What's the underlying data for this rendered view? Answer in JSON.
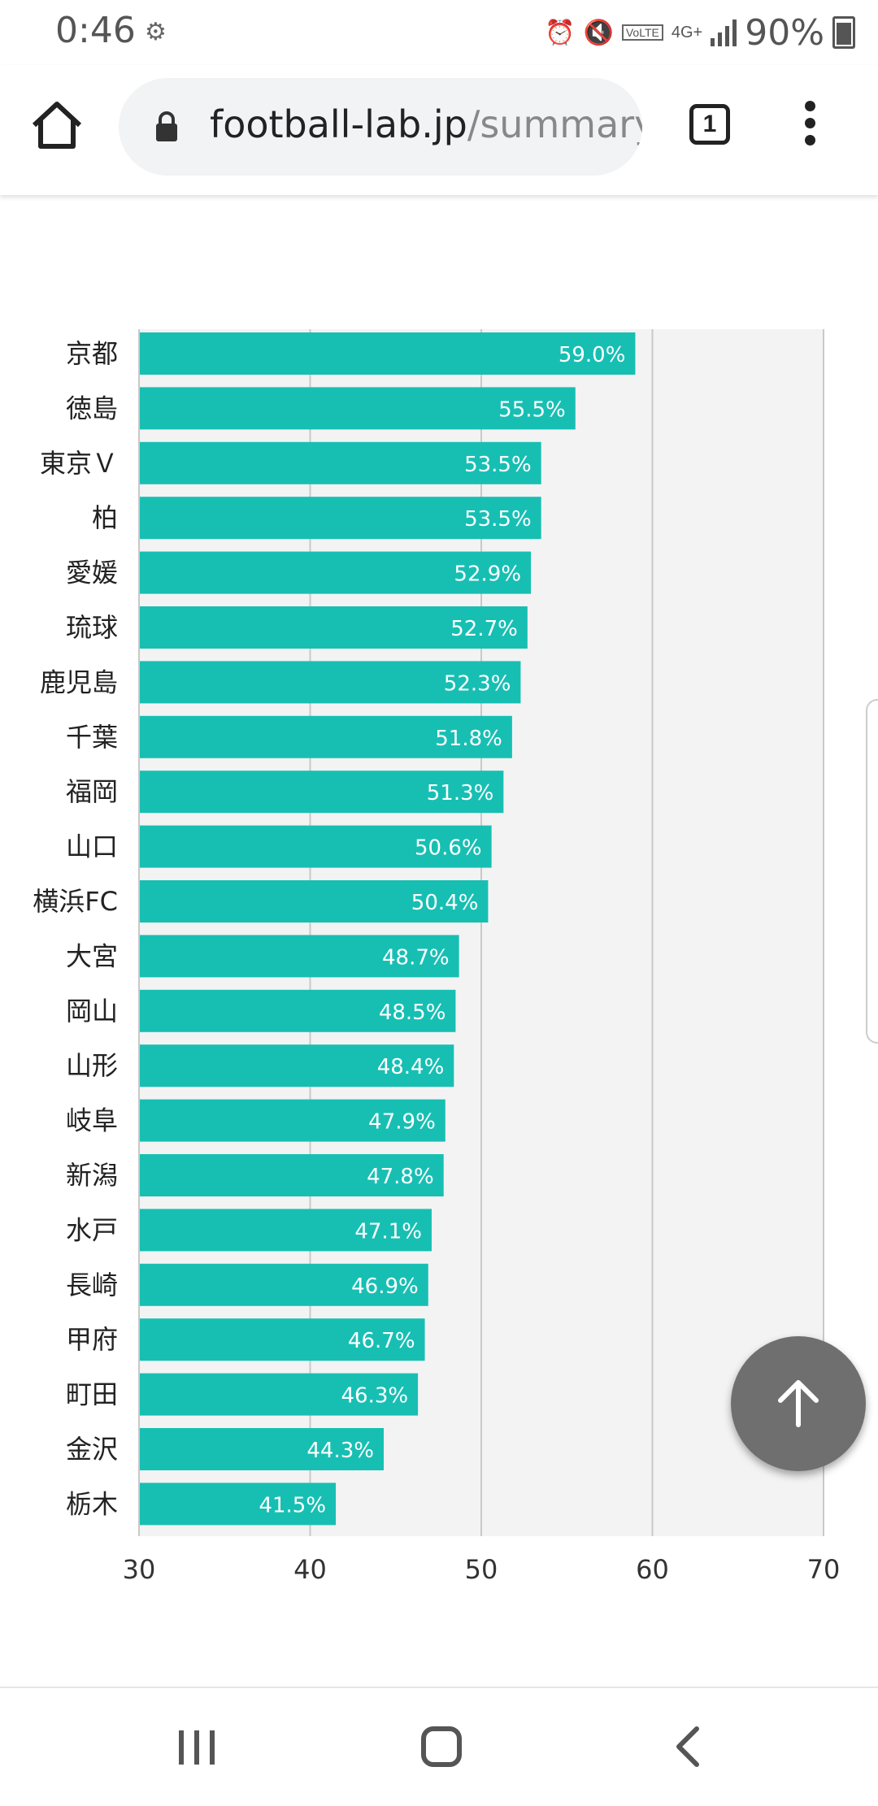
{
  "status_bar": {
    "time": "0:46",
    "volte": "VoLTE",
    "network": "4G+",
    "battery": "90%"
  },
  "browser": {
    "url_host": "football-lab.jp",
    "url_path": "/summary",
    "tab_count": "1"
  },
  "chart_data": {
    "type": "bar",
    "orientation": "horizontal",
    "categories": [
      "京都",
      "徳島",
      "東京Ｖ",
      "柏",
      "愛媛",
      "琉球",
      "鹿児島",
      "千葉",
      "福岡",
      "山口",
      "横浜FC",
      "大宮",
      "岡山",
      "山形",
      "岐阜",
      "新潟",
      "水戸",
      "長崎",
      "甲府",
      "町田",
      "金沢",
      "栃木"
    ],
    "values": [
      59.0,
      55.5,
      53.5,
      53.5,
      52.9,
      52.7,
      52.3,
      51.8,
      51.3,
      50.6,
      50.4,
      48.7,
      48.5,
      48.4,
      47.9,
      47.8,
      47.1,
      46.9,
      46.7,
      46.3,
      44.3,
      41.5
    ],
    "value_labels": [
      "59.0%",
      "55.5%",
      "53.5%",
      "53.5%",
      "52.9%",
      "52.7%",
      "52.3%",
      "51.8%",
      "51.3%",
      "50.6%",
      "50.4%",
      "48.7%",
      "48.5%",
      "48.4%",
      "47.9%",
      "47.8%",
      "47.1%",
      "46.9%",
      "46.7%",
      "46.3%",
      "44.3%",
      "41.5%"
    ],
    "xlim": [
      30,
      70
    ],
    "xticks": [
      "30",
      "40",
      "50",
      "60",
      "70"
    ],
    "grid": true,
    "bar_color": "#17bfb3",
    "title": "",
    "xlabel": "",
    "ylabel": ""
  }
}
